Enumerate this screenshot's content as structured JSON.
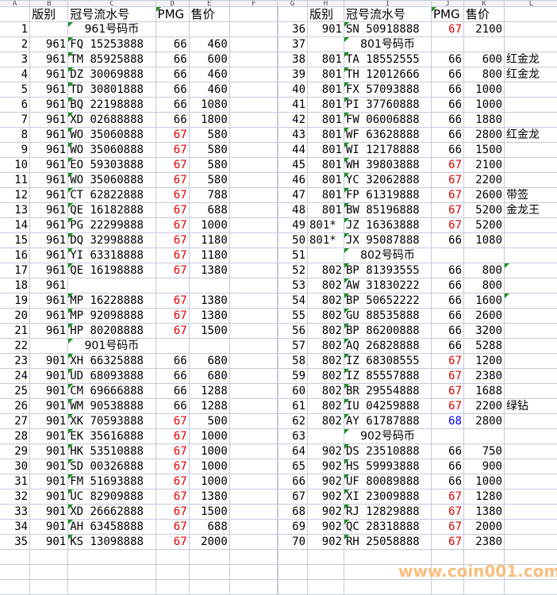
{
  "columns_left": [
    "A",
    "B",
    "C",
    "D",
    "E",
    "F"
  ],
  "columns_right": [
    "G",
    "H",
    "I",
    "J",
    "K",
    "L"
  ],
  "headers": {
    "edition": "版别",
    "serial": "冠号流水号",
    "pmg": "PMG",
    "price": "售价"
  },
  "colors": {
    "pmg_66": "#000000",
    "pmg_67": "#e00000",
    "pmg_68": "#0000ee",
    "row_number": "#e00000",
    "section": "#e00000",
    "comment_marker": "#1a8f1a"
  },
  "left_rows": [
    {
      "n": "1",
      "section": "961号码币"
    },
    {
      "n": "2",
      "ed": "961",
      "sn": "FQ 15253888",
      "pmg": "66",
      "price": "460"
    },
    {
      "n": "3",
      "ed": "961",
      "sn": "TM 85925888",
      "pmg": "66",
      "price": "600"
    },
    {
      "n": "4",
      "ed": "961",
      "sn": "DZ 30069888",
      "pmg": "66",
      "price": "460"
    },
    {
      "n": "5",
      "ed": "961",
      "sn": "TD 30801888",
      "pmg": "66",
      "price": "460"
    },
    {
      "n": "6",
      "ed": "961",
      "sn": "BQ 22198888",
      "pmg": "66",
      "price": "1080"
    },
    {
      "n": "7",
      "ed": "961",
      "sn": "XD 02688888",
      "pmg": "66",
      "price": "1800"
    },
    {
      "n": "8",
      "ed": "961",
      "sn": "WO 35060888",
      "pmg": "67",
      "price": "580"
    },
    {
      "n": "9",
      "ed": "961",
      "sn": "WO 35060888",
      "pmg": "67",
      "price": "580"
    },
    {
      "n": "10",
      "ed": "961",
      "sn": "EO 59303888",
      "pmg": "67",
      "price": "580"
    },
    {
      "n": "11",
      "ed": "961",
      "sn": "WO 35060888",
      "pmg": "67",
      "price": "580"
    },
    {
      "n": "12",
      "ed": "961",
      "sn": "CT 62822888",
      "pmg": "67",
      "price": "788"
    },
    {
      "n": "13",
      "ed": "961",
      "sn": "QE 16182888",
      "pmg": "67",
      "price": "688"
    },
    {
      "n": "14",
      "ed": "961",
      "sn": "PG 22299888",
      "pmg": "67",
      "price": "1000"
    },
    {
      "n": "15",
      "ed": "961",
      "sn": "DQ 32998888",
      "pmg": "67",
      "price": "1180"
    },
    {
      "n": "16",
      "ed": "961",
      "sn": "YI 63318888",
      "pmg": "67",
      "price": "1180"
    },
    {
      "n": "17",
      "ed": "961",
      "sn": "QE 16198888",
      "pmg": "67",
      "price": "1380"
    },
    {
      "n": "18",
      "ed": "961"
    },
    {
      "n": "19",
      "ed": "961",
      "sn": "MP 16228888",
      "pmg": "67",
      "price": "1380"
    },
    {
      "n": "20",
      "ed": "961",
      "sn": "MP 92098888",
      "pmg": "67",
      "price": "1380"
    },
    {
      "n": "21",
      "ed": "961",
      "sn": "HP 80208888",
      "pmg": "67",
      "price": "1500"
    },
    {
      "n": "22",
      "section": "901号码币"
    },
    {
      "n": "23",
      "ed": "901",
      "sn": "XH 66325888",
      "pmg": "66",
      "price": "680"
    },
    {
      "n": "24",
      "ed": "901",
      "sn": "UD 68093888",
      "pmg": "66",
      "price": "680"
    },
    {
      "n": "25",
      "ed": "901",
      "sn": "CM 69666888",
      "pmg": "66",
      "price": "1288"
    },
    {
      "n": "26",
      "ed": "901",
      "sn": "WM 90538888",
      "pmg": "66",
      "price": "1288"
    },
    {
      "n": "27",
      "ed": "901",
      "sn": "XK 70593888",
      "pmg": "67",
      "price": "500"
    },
    {
      "n": "28",
      "ed": "901",
      "sn": "EK 35616888",
      "pmg": "67",
      "price": "1000"
    },
    {
      "n": "29",
      "ed": "901",
      "sn": "HK 53510888",
      "pmg": "67",
      "price": "1000"
    },
    {
      "n": "30",
      "ed": "901",
      "sn": "SD 00326888",
      "pmg": "67",
      "price": "1000"
    },
    {
      "n": "31",
      "ed": "901",
      "sn": "FM 51693888",
      "pmg": "67",
      "price": "1000"
    },
    {
      "n": "32",
      "ed": "901",
      "sn": "UC 82909888",
      "pmg": "67",
      "price": "1380"
    },
    {
      "n": "33",
      "ed": "901",
      "sn": "XD 26662888",
      "pmg": "67",
      "price": "1500"
    },
    {
      "n": "34",
      "ed": "901",
      "sn": "AH 63458888",
      "pmg": "67",
      "price": "688"
    },
    {
      "n": "35",
      "ed": "901",
      "sn": "KS 13098888",
      "pmg": "67",
      "price": "2000"
    }
  ],
  "right_rows": [
    {
      "n": "36",
      "ed": "901",
      "sn": "SN 50918888",
      "pmg": "67",
      "price": "2100"
    },
    {
      "n": "37",
      "section": "801号码币"
    },
    {
      "n": "38",
      "ed": "801",
      "sn": "TA 18552555",
      "pmg": "66",
      "price": "600",
      "note": "红金龙"
    },
    {
      "n": "39",
      "ed": "801",
      "sn": "TH 12012666",
      "pmg": "66",
      "price": "800",
      "note": "红金龙"
    },
    {
      "n": "40",
      "ed": "801",
      "sn": "FX 57093888",
      "pmg": "66",
      "price": "1000"
    },
    {
      "n": "41",
      "ed": "801",
      "sn": "PI 37760888",
      "pmg": "66",
      "price": "1000"
    },
    {
      "n": "42",
      "ed": "801",
      "sn": "FW 06006888",
      "pmg": "66",
      "price": "1880"
    },
    {
      "n": "43",
      "ed": "801",
      "sn": "WF 63628888",
      "pmg": "66",
      "price": "2800",
      "note": "红金龙"
    },
    {
      "n": "44",
      "ed": "801",
      "sn": "WI 12178888",
      "pmg": "66",
      "price": "1500"
    },
    {
      "n": "45",
      "ed": "801",
      "sn": "WH 39803888",
      "pmg": "67",
      "price": "2100"
    },
    {
      "n": "46",
      "ed": "801",
      "sn": "YC 32062888",
      "pmg": "67",
      "price": "2200"
    },
    {
      "n": "47",
      "ed": "801",
      "sn": "FP 61319888",
      "pmg": "67",
      "price": "2600",
      "note": "带签"
    },
    {
      "n": "48",
      "ed": "801",
      "sn": "BW 85196888",
      "pmg": "67",
      "price": "5200",
      "note": "金龙王"
    },
    {
      "n": "49",
      "ed": "801*",
      "sn": "JZ 16363888",
      "pmg": "67",
      "price": "5200"
    },
    {
      "n": "50",
      "ed": "801*",
      "sn": "JX 95087888",
      "pmg": "66",
      "price": "1080"
    },
    {
      "n": "51",
      "section": "802号码币"
    },
    {
      "n": "52",
      "ed": "802",
      "sn": "BP 81393555",
      "pmg": "66",
      "price": "800",
      "mark": true
    },
    {
      "n": "53",
      "ed": "802",
      "sn": "AW 31830222",
      "pmg": "66",
      "price": "800"
    },
    {
      "n": "54",
      "ed": "802",
      "sn": "BP 50652222",
      "pmg": "66",
      "price": "1600",
      "mark": true
    },
    {
      "n": "55",
      "ed": "802",
      "sn": "GU 88535888",
      "pmg": "66",
      "price": "2600"
    },
    {
      "n": "56",
      "ed": "802",
      "sn": "BP 86200888",
      "pmg": "66",
      "price": "3200"
    },
    {
      "n": "57",
      "ed": "802",
      "sn": "AQ 26828888",
      "pmg": "66",
      "price": "5288"
    },
    {
      "n": "58",
      "ed": "802",
      "sn": "IZ 68308555",
      "pmg": "67",
      "price": "1200"
    },
    {
      "n": "59",
      "ed": "802",
      "sn": "IZ 85557888",
      "pmg": "67",
      "price": "2380"
    },
    {
      "n": "60",
      "ed": "802",
      "sn": "BR 29554888",
      "pmg": "67",
      "price": "1688"
    },
    {
      "n": "61",
      "ed": "802",
      "sn": "IU 04259888",
      "pmg": "67",
      "price": "2200",
      "note": "绿钻"
    },
    {
      "n": "62",
      "ed": "802",
      "sn": "AY 61787888",
      "pmg": "68",
      "price": "2800"
    },
    {
      "n": "63",
      "section": "902号码币"
    },
    {
      "n": "64",
      "ed": "902",
      "sn": "DS 23510888",
      "pmg": "66",
      "price": "750"
    },
    {
      "n": "65",
      "ed": "902",
      "sn": "HS 59993888",
      "pmg": "66",
      "price": "900"
    },
    {
      "n": "66",
      "ed": "902",
      "sn": "UF 80089888",
      "pmg": "66",
      "price": "1000"
    },
    {
      "n": "67",
      "ed": "902",
      "sn": "XI 23009888",
      "pmg": "67",
      "price": "1280"
    },
    {
      "n": "68",
      "ed": "902",
      "sn": "RJ 12829888",
      "pmg": "67",
      "price": "1380"
    },
    {
      "n": "69",
      "ed": "902",
      "sn": "QC 28318888",
      "pmg": "67",
      "price": "2000"
    },
    {
      "n": "70",
      "ed": "902",
      "sn": "RH 25058888",
      "pmg": "67",
      "price": "2380"
    }
  ],
  "watermark": "www.coin001.com"
}
